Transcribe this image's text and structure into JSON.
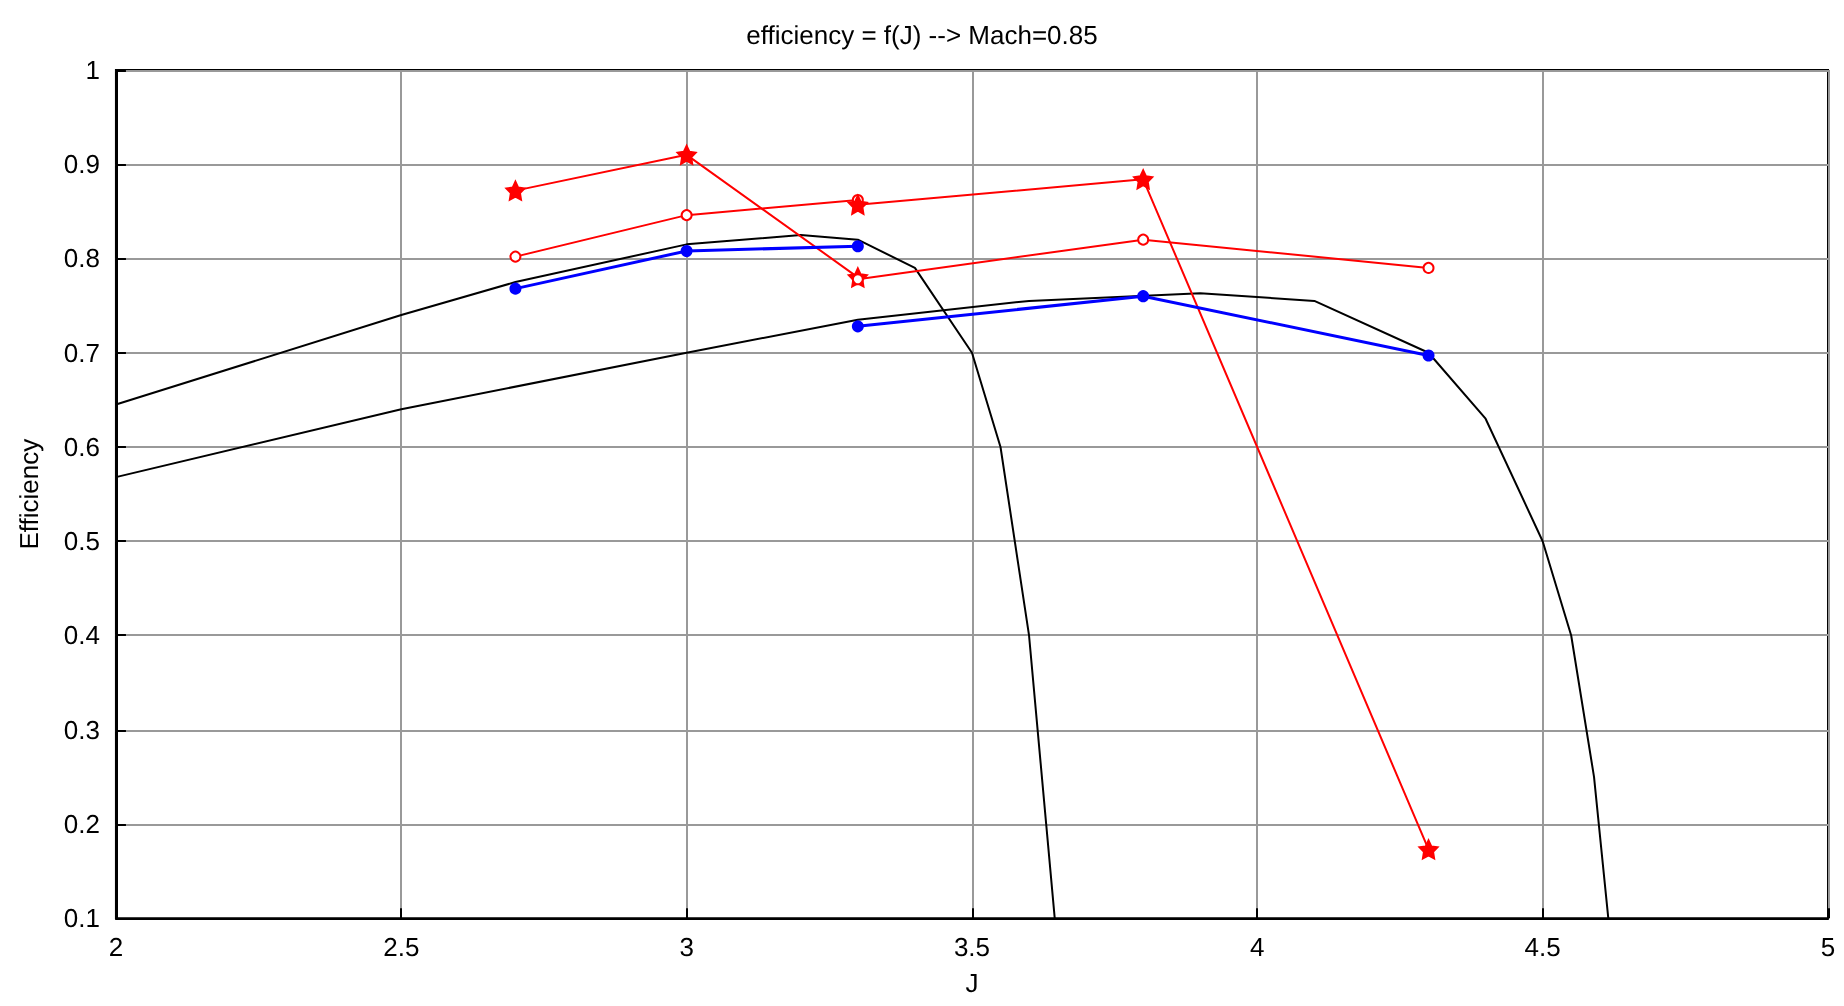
{
  "chart_data": {
    "type": "line",
    "title": "efficiency = f(J) --> Mach=0.85",
    "xlabel": "J",
    "ylabel": "Efficiency",
    "xlim": [
      2,
      5
    ],
    "xticks": [
      2,
      2.5,
      3,
      3.5,
      4,
      4.5,
      5
    ],
    "ylim": [
      0.1,
      1
    ],
    "yticks": [
      0.1,
      0.2,
      0.3,
      0.4,
      0.5,
      0.6,
      0.7,
      0.8,
      0.9,
      1
    ],
    "grid": true,
    "series": [
      {
        "color": "#000000",
        "marker": "none",
        "x": [
          2,
          2.5,
          2.7,
          3.0,
          3.2,
          3.3,
          3.4,
          3.5,
          3.55,
          3.6,
          3.63,
          3.645
        ],
        "values": [
          0.645,
          0.74,
          0.775,
          0.815,
          0.825,
          0.82,
          0.79,
          0.7,
          0.6,
          0.4,
          0.2,
          0.1
        ]
      },
      {
        "color": "#000000",
        "marker": "none",
        "x": [
          2,
          2.5,
          3,
          3.3,
          3.6,
          3.9,
          4.1,
          4.3,
          4.4,
          4.5,
          4.55,
          4.59,
          4.615
        ],
        "values": [
          0.568,
          0.64,
          0.7,
          0.735,
          0.755,
          0.763,
          0.755,
          0.7,
          0.63,
          0.5,
          0.4,
          0.25,
          0.1
        ]
      },
      {
        "color": "#ff0000",
        "marker": "star",
        "x": [
          2.7,
          3.0,
          3.3
        ],
        "values": [
          0.872,
          0.91,
          0.78
        ]
      },
      {
        "color": "#ff0000",
        "marker": "circle",
        "x": [
          2.7,
          3.0,
          3.3
        ],
        "values": [
          0.802,
          0.846,
          0.862
        ]
      },
      {
        "color": "#ff0000",
        "marker": "circle",
        "x": [
          3.3,
          3.8,
          4.3
        ],
        "values": [
          0.778,
          0.82,
          0.79
        ]
      },
      {
        "color": "#ff0000",
        "marker": "star",
        "x": [
          3.3,
          3.8,
          4.3
        ],
        "values": [
          0.857,
          0.884,
          0.173
        ]
      },
      {
        "color": "#0000ff",
        "marker": "circle",
        "x": [
          2.7,
          3.0,
          3.3
        ],
        "values": [
          0.768,
          0.808,
          0.813
        ]
      },
      {
        "color": "#0000ff",
        "marker": "circle",
        "x": [
          3.3,
          3.8,
          4.3
        ],
        "values": [
          0.728,
          0.76,
          0.697
        ]
      }
    ]
  }
}
